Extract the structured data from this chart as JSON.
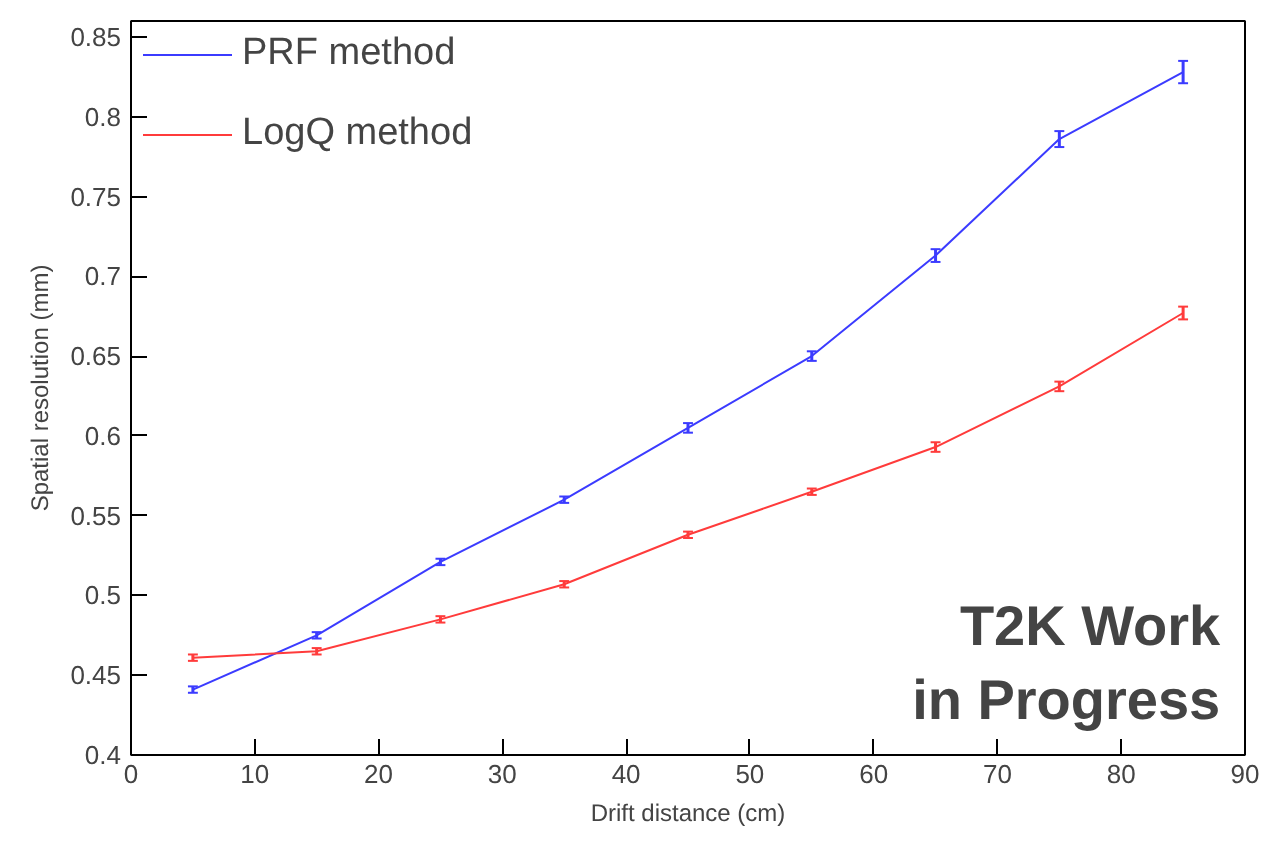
{
  "chart_data": {
    "type": "line",
    "xlabel": "Drift distance (cm)",
    "ylabel": "Spatial resolution (mm)",
    "x": [
      5,
      15,
      25,
      35,
      45,
      55,
      65,
      75,
      85
    ],
    "series": [
      {
        "name": "PRF method",
        "color": "#3b3bff",
        "values": [
          0.441,
          0.475,
          0.521,
          0.56,
          0.605,
          0.65,
          0.713,
          0.786,
          0.828
        ],
        "errors": [
          0.002,
          0.002,
          0.002,
          0.002,
          0.003,
          0.003,
          0.004,
          0.005,
          0.007
        ]
      },
      {
        "name": "LogQ method",
        "color": "#ff3b3b",
        "values": [
          0.461,
          0.465,
          0.485,
          0.507,
          0.538,
          0.565,
          0.593,
          0.631,
          0.677
        ],
        "errors": [
          0.002,
          0.002,
          0.002,
          0.002,
          0.002,
          0.002,
          0.003,
          0.003,
          0.004
        ]
      }
    ],
    "xlim": [
      0,
      90
    ],
    "ylim": [
      0.4,
      0.86
    ],
    "xticks": [
      0,
      10,
      20,
      30,
      40,
      50,
      60,
      70,
      80,
      90
    ],
    "yticks": [
      {
        "value": 0.4,
        "label": "0.4"
      },
      {
        "value": 0.45,
        "label": "0.45"
      },
      {
        "value": 0.5,
        "label": "0.5"
      },
      {
        "value": 0.55,
        "label": "0.55"
      },
      {
        "value": 0.6,
        "label": "0.6"
      },
      {
        "value": 0.65,
        "label": "0.65"
      },
      {
        "value": 0.7,
        "label": "0.7"
      },
      {
        "value": 0.75,
        "label": "0.75"
      },
      {
        "value": 0.8,
        "label": "0.8"
      },
      {
        "value": 0.85,
        "label": "0.85"
      }
    ],
    "grid": false,
    "legend": "top left",
    "marker": "none",
    "line_style": "solid",
    "annotations": [
      "T2K Work\nin Progress"
    ]
  }
}
